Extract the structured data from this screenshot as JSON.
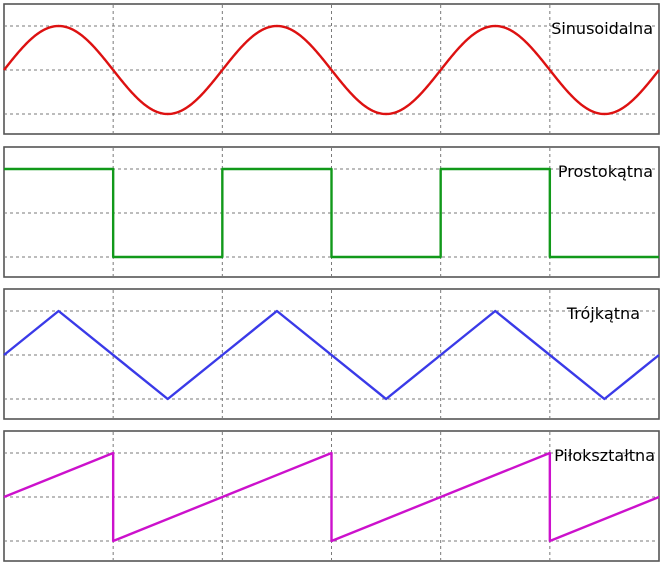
{
  "panels": [
    {
      "key": "sine",
      "label": "Sinusoidalna",
      "color": "#dd1111",
      "waveform": "sine"
    },
    {
      "key": "square",
      "label": "Prostokątna",
      "color": "#11991a",
      "waveform": "square"
    },
    {
      "key": "triangle",
      "label": "Trójkątna",
      "color": "#3a3ae8",
      "waveform": "triangle"
    },
    {
      "key": "sawtooth",
      "label": "Piłokształtna",
      "color": "#cc11cc",
      "waveform": "sawtooth"
    }
  ],
  "cycles": 3,
  "vertical_grid_divisions": 6,
  "horizontal_grid_levels": [
    1,
    0,
    -1
  ],
  "grid_visible": true
}
